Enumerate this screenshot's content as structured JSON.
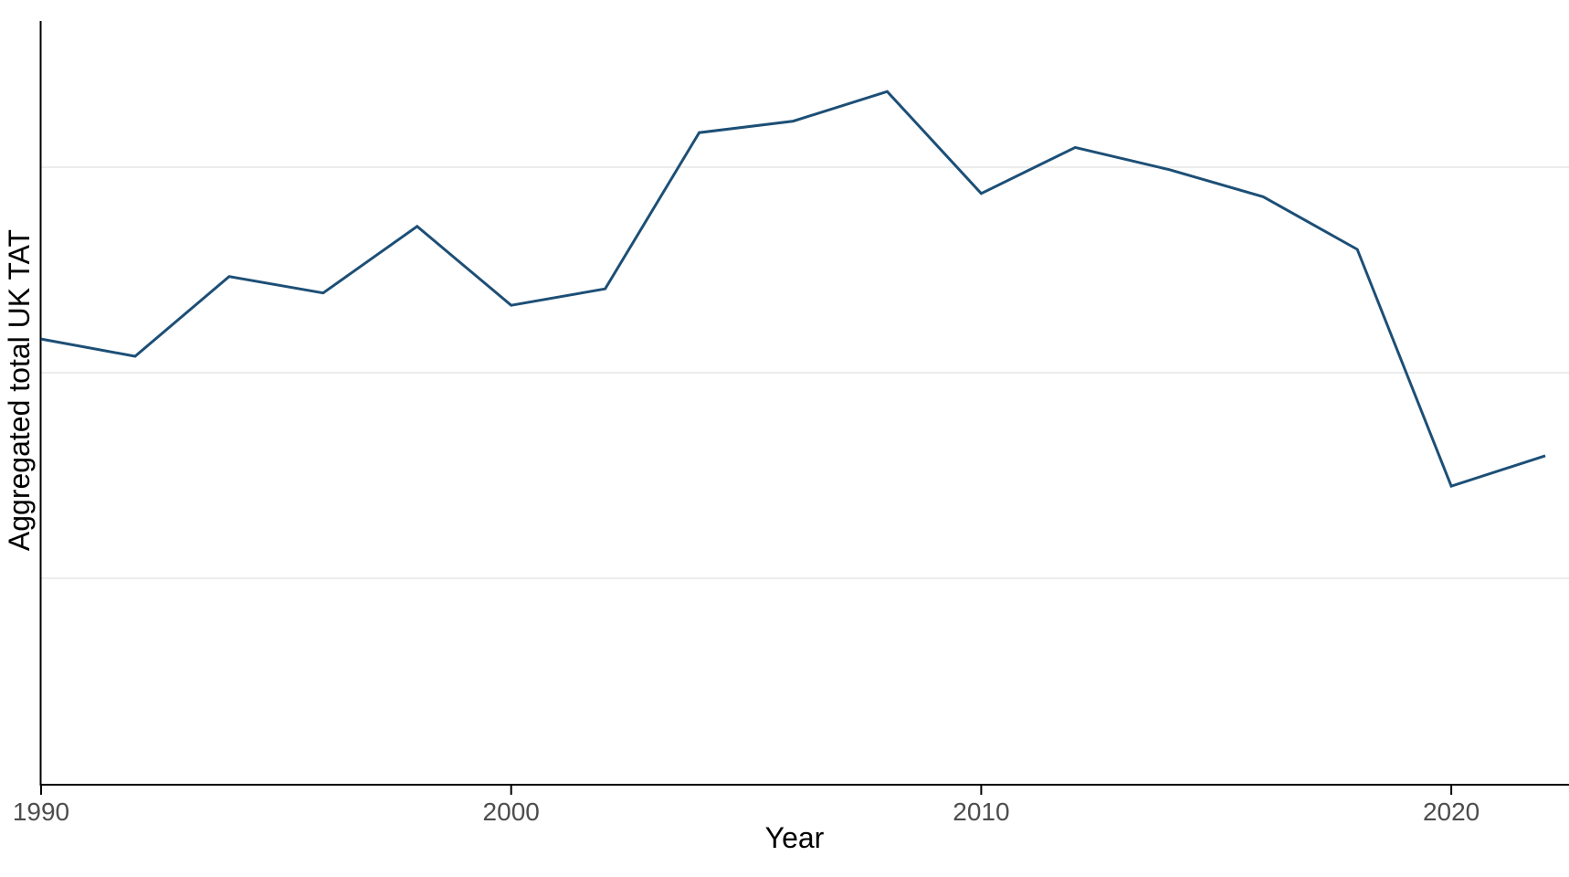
{
  "chart_data": {
    "type": "line",
    "title": "",
    "xlabel": "Year",
    "ylabel": "Aggregated total UK TAT",
    "series_name": "Aggregated total UK TAT",
    "x": [
      1990,
      1992,
      1994,
      1996,
      1998,
      2000,
      2002,
      2004,
      2006,
      2008,
      2010,
      2012,
      2014,
      2016,
      2018,
      2020,
      2022
    ],
    "values": [
      54.1,
      52.0,
      61.7,
      59.7,
      67.8,
      58.2,
      60.2,
      79.2,
      80.6,
      84.2,
      71.8,
      77.4,
      74.7,
      71.4,
      65.0,
      36.2,
      39.9
    ],
    "x_ticks": [
      1990,
      2000,
      2010,
      2020
    ],
    "x_tick_labels": [
      "1990",
      "2000",
      "2010",
      "2020"
    ],
    "y_tick_labels_visible": false,
    "y_gridline_values": [
      25,
      50,
      75
    ],
    "xlim": [
      1990,
      2022.5
    ],
    "ylim": [
      0,
      92.9
    ],
    "grid": "horizontal-major-only",
    "legend": "none",
    "line_color": "#1d4f76",
    "axis_color": "#000000",
    "tick_label_color": "#4d4d4d",
    "gridline_color": "#ececec",
    "background_color": "#ffffff",
    "note": "Y axis shows no tick labels; values are in arbitrary units inferred from gridline spacing (gridlines at 25, 50, 75)."
  }
}
